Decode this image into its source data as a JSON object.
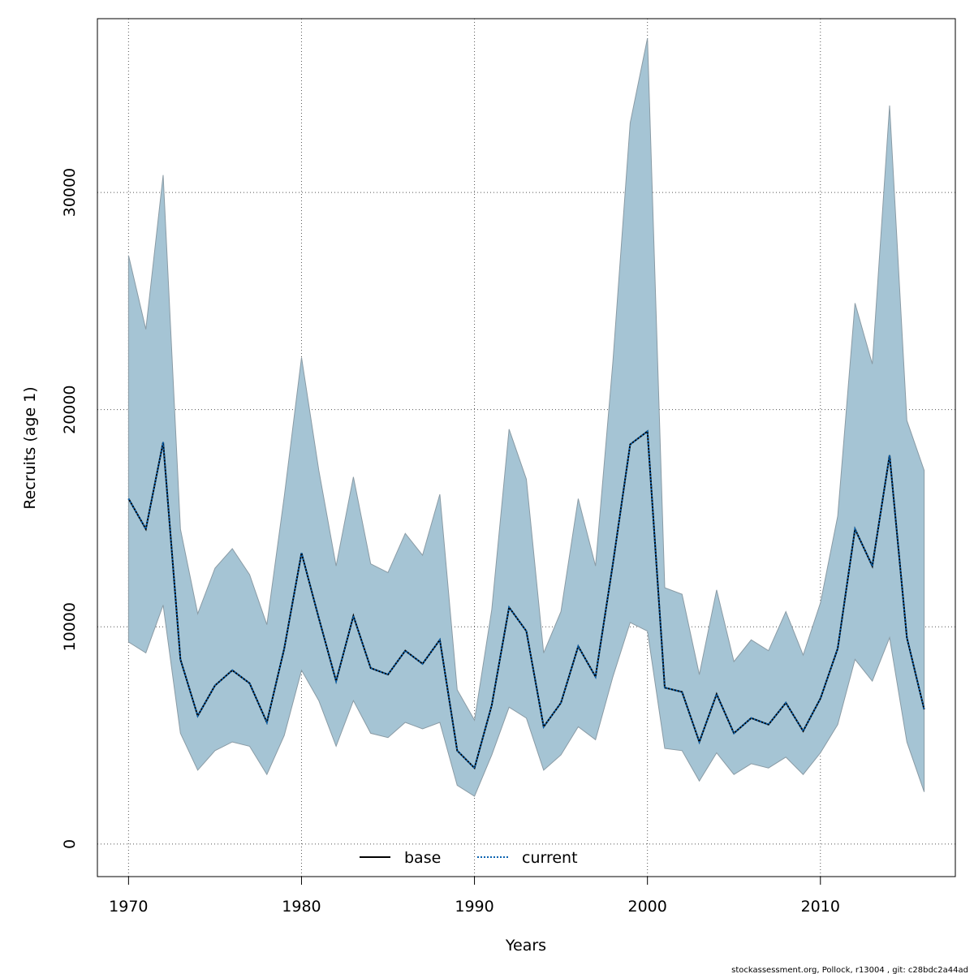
{
  "chart_data": {
    "type": "area",
    "xlabel": "Years",
    "ylabel": "Recruits (age 1)",
    "xlim": [
      1968.2,
      2017.8
    ],
    "ylim": [
      -1500,
      38000
    ],
    "xticks": [
      1970,
      1980,
      1990,
      2000,
      2010
    ],
    "yticks": [
      0,
      10000,
      20000,
      30000
    ],
    "grid": true,
    "legend_placement": "bottom-center",
    "x": [
      1970,
      1971,
      1972,
      1973,
      1974,
      1975,
      1976,
      1977,
      1978,
      1979,
      1980,
      1981,
      1982,
      1983,
      1984,
      1985,
      1986,
      1987,
      1988,
      1989,
      1990,
      1991,
      1992,
      1993,
      1994,
      1995,
      1996,
      1997,
      1998,
      1999,
      2000,
      2001,
      2002,
      2003,
      2004,
      2005,
      2006,
      2007,
      2008,
      2009,
      2010,
      2011,
      2012,
      2013,
      2014,
      2015,
      2016
    ],
    "series": [
      {
        "name": "base",
        "style": "solid",
        "color": "#000000",
        "values": [
          15900,
          14500,
          18500,
          8500,
          5900,
          7300,
          8000,
          7400,
          5600,
          9000,
          13400,
          10400,
          7500,
          10500,
          8100,
          7800,
          8900,
          8300,
          9400,
          4300,
          3500,
          6400,
          10900,
          9800,
          5400,
          6500,
          9100,
          7700,
          12900,
          18400,
          19000,
          7200,
          7000,
          4700,
          6900,
          5100,
          5800,
          5500,
          6500,
          5200,
          6700,
          9000,
          14500,
          12800,
          17900,
          9500,
          6200
        ]
      },
      {
        "name": "current",
        "style": "dotted",
        "color": "#0b63b0",
        "values": [
          15900,
          14500,
          18500,
          8500,
          5900,
          7300,
          8000,
          7400,
          5600,
          9000,
          13400,
          10400,
          7500,
          10500,
          8100,
          7800,
          8900,
          8300,
          9400,
          4300,
          3500,
          6400,
          10900,
          9800,
          5400,
          6500,
          9100,
          7700,
          12900,
          18400,
          19000,
          7200,
          7000,
          4700,
          6900,
          5100,
          5800,
          5500,
          6500,
          5200,
          6700,
          9000,
          14500,
          12800,
          17900,
          9500,
          6200
        ]
      }
    ],
    "band": {
      "color": "#a5c4d4",
      "lower": [
        9300,
        8800,
        11000,
        5100,
        3400,
        4300,
        4700,
        4500,
        3200,
        5000,
        8000,
        6600,
        4500,
        6600,
        5100,
        4900,
        5600,
        5300,
        5600,
        2700,
        2200,
        4100,
        6300,
        5800,
        3400,
        4100,
        5400,
        4800,
        7700,
        10200,
        9800,
        4400,
        4300,
        2900,
        4200,
        3200,
        3700,
        3500,
        4000,
        3200,
        4200,
        5500,
        8500,
        7500,
        9500,
        4700,
        2400
      ],
      "upper": [
        27100,
        23700,
        30800,
        14500,
        10600,
        12700,
        13600,
        12400,
        10100,
        16000,
        22400,
        17200,
        12800,
        16900,
        12900,
        12500,
        14300,
        13300,
        16100,
        7100,
        5700,
        10800,
        19100,
        16800,
        8800,
        10700,
        15900,
        12800,
        22200,
        33200,
        37100,
        11800,
        11500,
        7800,
        11700,
        8400,
        9400,
        8900,
        10700,
        8700,
        11100,
        15100,
        24900,
        22100,
        34000,
        19500,
        17200
      ]
    }
  },
  "footer": "stockassessment.org, Pollock, r13004 , git: c28bdc2a44ad"
}
